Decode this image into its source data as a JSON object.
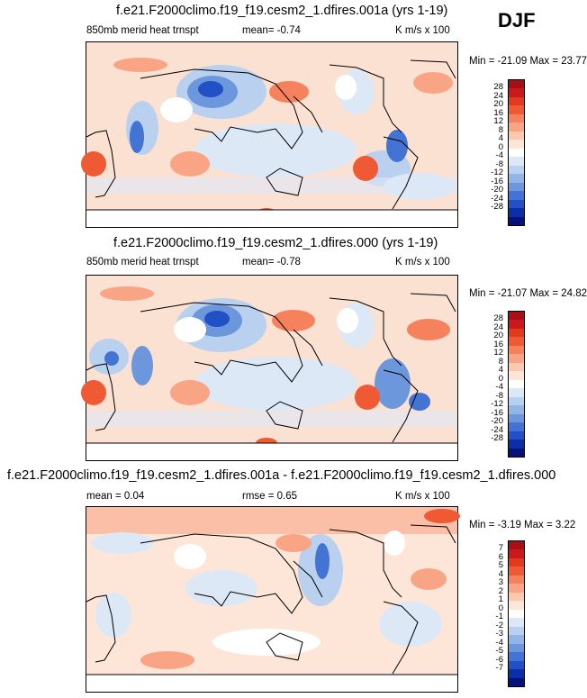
{
  "season": "DJF",
  "panels": [
    {
      "title": "f.e21.F2000climo.f19_f19.cesm2_1.dfires.001a (yrs 1-19)",
      "field": "850mb merid heat trnspt",
      "stat": "mean=  -0.74",
      "units": "K m/s x 100",
      "minmax": "Min = -21.09 Max =  23.77"
    },
    {
      "title": "f.e21.F2000climo.f19_f19.cesm2_1.dfires.000 (yrs 1-19)",
      "field": "850mb merid heat trnspt",
      "stat": "mean=  -0.78",
      "units": "K m/s x 100",
      "minmax": "Min = -21.07 Max =  24.82"
    }
  ],
  "diff": {
    "title": "f.e21.F2000climo.f19_f19.cesm2_1.dfires.001a - f.e21.F2000climo.f19_f19.cesm2_1.dfires.000",
    "mean": "mean =  0.04",
    "rmse": "rmse =  0.65",
    "units": "K m/s x 100",
    "minmax": "Min =  -3.19 Max =   3.22"
  },
  "colorbar_main": {
    "labels": [
      "28",
      "24",
      "20",
      "16",
      "12",
      "8",
      "4",
      "0",
      "-4",
      "-8",
      "-12",
      "-16",
      "-20",
      "-24",
      "-28"
    ],
    "colors": [
      "#a50f15",
      "#cb181d",
      "#e03a1f",
      "#ef5a34",
      "#f6825d",
      "#f9a585",
      "#fcc8ae",
      "#fde6d8",
      "#ffffff",
      "#dde8f7",
      "#b9d0ef",
      "#93b5e6",
      "#6c97dc",
      "#4474d3",
      "#2151c5",
      "#0c2ea6",
      "#06127a"
    ]
  },
  "colorbar_diff": {
    "labels": [
      "7",
      "6",
      "5",
      "4",
      "3",
      "2",
      "1",
      "0",
      "-1",
      "-2",
      "-3",
      "-4",
      "-5",
      "-6",
      "-7"
    ],
    "colors": [
      "#a50f15",
      "#cb181d",
      "#e03a1f",
      "#ef5a34",
      "#f6825d",
      "#f9a585",
      "#fcc8ae",
      "#fde6d8",
      "#ffffff",
      "#dde8f7",
      "#b9d0ef",
      "#93b5e6",
      "#6c97dc",
      "#4474d3",
      "#2151c5",
      "#0c2ea6",
      "#06127a"
    ]
  }
}
